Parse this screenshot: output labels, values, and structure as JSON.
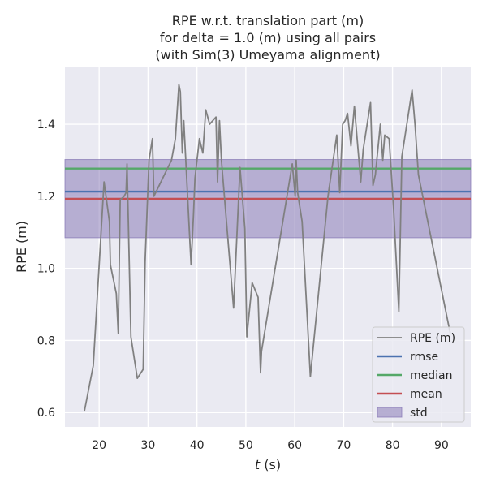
{
  "chart_data": {
    "type": "line",
    "title_lines": [
      "RPE w.r.t. translation part (m)",
      "for delta = 1.0 (m) using all pairs",
      "(with Sim(3) Umeyama alignment)"
    ],
    "xlabel_italic": "t",
    "xlabel_rest": " (s)",
    "ylabel": "RPE (m)",
    "xlim": [
      13,
      96
    ],
    "ylim": [
      0.56,
      1.56
    ],
    "xticks": [
      20,
      30,
      40,
      50,
      60,
      70,
      80,
      90
    ],
    "yticks": [
      0.6,
      0.8,
      1.0,
      1.2,
      1.4
    ],
    "ytick_labels": [
      "0.6",
      "0.8",
      "1.0",
      "1.2",
      "1.4"
    ],
    "grid": true,
    "background": "#eaeaf2",
    "legend_position": "lower right",
    "series": [
      {
        "name": "RPE (m)",
        "color": "#808080",
        "x": [
          17.0,
          18.8,
          21.0,
          22.1,
          22.3,
          23.5,
          23.9,
          24.3,
          25.1,
          25.5,
          25.7,
          26.5,
          27.8,
          29.0,
          29.4,
          30.2,
          30.9,
          31.2,
          34.8,
          35.6,
          36.3,
          36.6,
          37.0,
          37.3,
          38.8,
          39.3,
          39.6,
          40.5,
          41.2,
          41.8,
          42.6,
          43.9,
          44.2,
          44.6,
          45.0,
          47.5,
          48.8,
          49.8,
          50.2,
          51.3,
          52.5,
          53.0,
          53.2,
          59.5,
          60.1,
          60.3,
          60.6,
          61.5,
          63.2,
          66.8,
          68.6,
          69.2,
          69.8,
          70.3,
          70.8,
          71.5,
          72.2,
          73.5,
          74.0,
          75.5,
          76.0,
          76.5,
          77.5,
          78.0,
          78.4,
          79.3,
          80.2,
          81.3,
          81.9,
          84.0,
          84.6,
          85.3,
          91.8
        ],
        "y": [
          0.605,
          0.73,
          1.24,
          1.13,
          1.01,
          0.93,
          0.82,
          1.19,
          1.2,
          1.21,
          1.29,
          0.81,
          0.695,
          0.72,
          1.02,
          1.3,
          1.36,
          1.2,
          1.3,
          1.36,
          1.51,
          1.49,
          1.32,
          1.41,
          1.01,
          1.15,
          1.25,
          1.36,
          1.32,
          1.44,
          1.4,
          1.42,
          1.24,
          1.41,
          1.3,
          0.89,
          1.28,
          1.11,
          0.81,
          0.96,
          0.92,
          0.71,
          0.77,
          1.29,
          1.2,
          1.3,
          1.21,
          1.13,
          0.7,
          1.2,
          1.37,
          1.21,
          1.4,
          1.41,
          1.43,
          1.34,
          1.45,
          1.24,
          1.33,
          1.46,
          1.23,
          1.26,
          1.4,
          1.3,
          1.37,
          1.36,
          1.17,
          0.88,
          1.31,
          1.495,
          1.4,
          1.26,
          0.82
        ]
      }
    ],
    "hlines": [
      {
        "name": "rmse",
        "value": 1.213,
        "color": "#4c72b0"
      },
      {
        "name": "median",
        "value": 1.277,
        "color": "#55a868"
      },
      {
        "name": "mean",
        "value": 1.193,
        "color": "#c44e52"
      }
    ],
    "bands": [
      {
        "name": "std",
        "lower": 1.085,
        "upper": 1.302,
        "color": "#8172b2"
      }
    ],
    "legend": [
      "RPE (m)",
      "rmse",
      "median",
      "mean",
      "std"
    ]
  }
}
